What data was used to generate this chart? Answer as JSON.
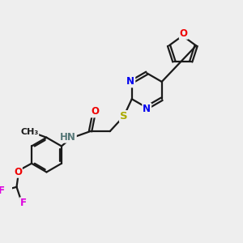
{
  "background_color": "#eeeeee",
  "bond_color": "#1a1a1a",
  "bond_width": 1.6,
  "atom_colors": {
    "N": "#0000ee",
    "O": "#ee0000",
    "S": "#aaaa00",
    "F": "#dd00dd",
    "H": "#777777",
    "C": "#1a1a1a"
  },
  "font_size": 8.5,
  "fig_size": [
    3.0,
    3.0
  ],
  "dpi": 100
}
